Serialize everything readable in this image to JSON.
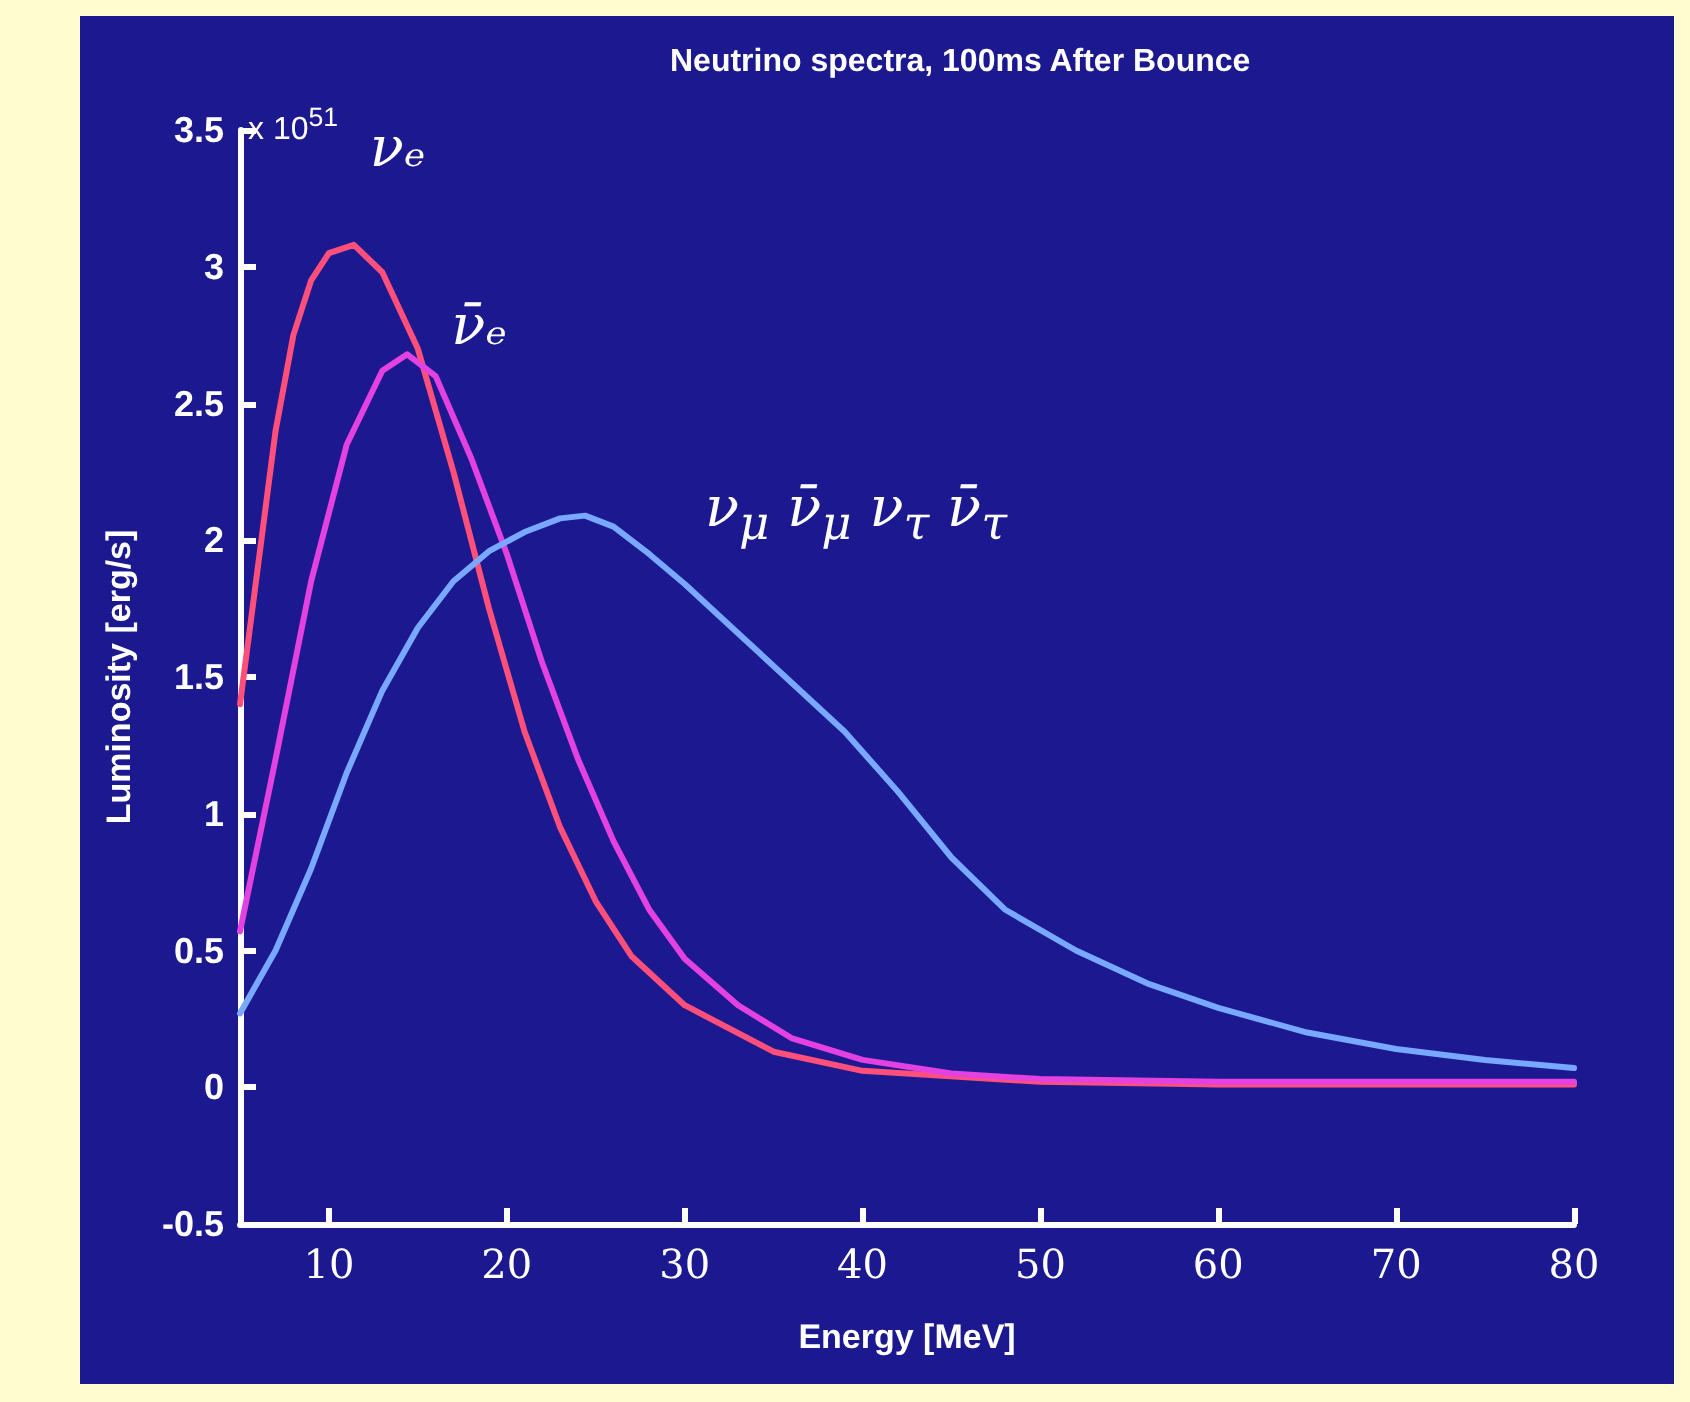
{
  "chart_data": {
    "type": "line",
    "title": "Neutrino spectra, 100ms After Bounce",
    "xlabel": "Energy [MeV]",
    "ylabel": "Luminosity [erg/s]",
    "annotations": [
      "x 10$^{51}$"
    ],
    "xlim": [
      5,
      80
    ],
    "xticks": [
      10,
      20,
      30,
      40,
      50,
      60,
      70,
      80
    ],
    "ylim": [
      -0.5,
      3.5
    ],
    "yticks": [
      -0.5,
      0,
      0.5,
      1,
      1.5,
      2,
      2.5,
      3,
      3.5
    ],
    "grid": false,
    "marker": "none",
    "line_style": "solid",
    "series": [
      {
        "name": "νₑ",
        "color": "#ff4f7a",
        "x": [
          5,
          6,
          7,
          8,
          9,
          10,
          11.4,
          13,
          15,
          17,
          19,
          21,
          23,
          25,
          27,
          30,
          35,
          40,
          50,
          60,
          80
        ],
        "values": [
          1.4,
          1.9,
          2.4,
          2.75,
          2.95,
          3.05,
          3.08,
          2.98,
          2.7,
          2.25,
          1.75,
          1.3,
          0.95,
          0.68,
          0.48,
          0.3,
          0.13,
          0.06,
          0.02,
          0.01,
          0.01
        ]
      },
      {
        "name": "ν̄ₑ",
        "color": "#e442e0",
        "x": [
          5,
          7,
          9,
          11,
          13,
          14.4,
          16,
          18,
          20,
          22,
          24,
          26,
          28,
          30,
          33,
          36,
          40,
          45,
          50,
          60,
          80
        ],
        "values": [
          0.57,
          1.2,
          1.85,
          2.35,
          2.62,
          2.68,
          2.6,
          2.3,
          1.95,
          1.55,
          1.2,
          0.9,
          0.65,
          0.47,
          0.3,
          0.18,
          0.1,
          0.05,
          0.03,
          0.02,
          0.02
        ]
      },
      {
        "name": "ν$_{μ}$ ν̄$_{μ}$ ν$_{τ}$ ν̄$_{τ}$",
        "color": "#78a8ff",
        "x": [
          5,
          7,
          9,
          11,
          13,
          15,
          17,
          19,
          21,
          23,
          24.4,
          26,
          28,
          30,
          33,
          36,
          39,
          42,
          45,
          48,
          52,
          56,
          60,
          65,
          70,
          75,
          80
        ],
        "values": [
          0.27,
          0.5,
          0.8,
          1.15,
          1.45,
          1.68,
          1.85,
          1.96,
          2.03,
          2.08,
          2.09,
          2.05,
          1.95,
          1.84,
          1.66,
          1.48,
          1.3,
          1.08,
          0.84,
          0.65,
          0.5,
          0.38,
          0.29,
          0.2,
          0.14,
          0.1,
          0.07
        ]
      }
    ]
  }
}
